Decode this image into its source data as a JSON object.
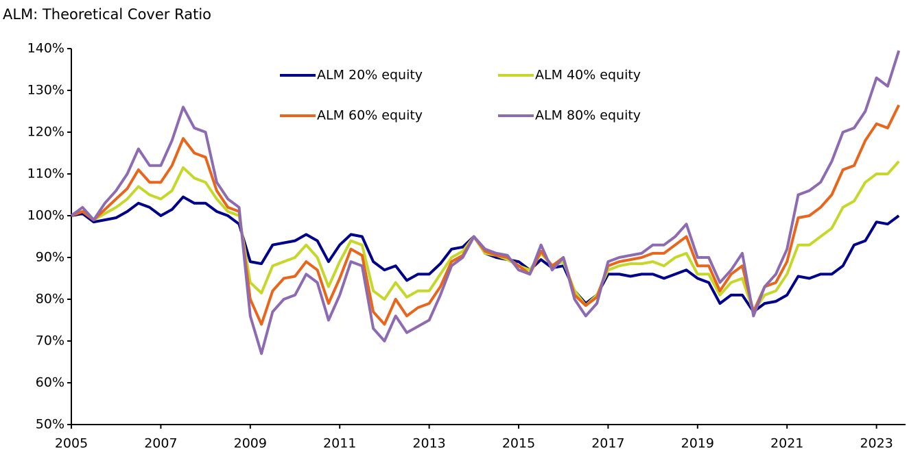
{
  "chart_data": {
    "type": "line",
    "title": "ALM: Theoretical Cover Ratio",
    "x": [
      2005,
      2005.25,
      2005.5,
      2005.75,
      2006,
      2006.25,
      2006.5,
      2006.75,
      2007,
      2007.25,
      2007.5,
      2007.75,
      2008,
      2008.25,
      2008.5,
      2008.75,
      2009,
      2009.25,
      2009.5,
      2009.75,
      2010,
      2010.25,
      2010.5,
      2010.75,
      2011,
      2011.25,
      2011.5,
      2011.75,
      2012,
      2012.25,
      2012.5,
      2012.75,
      2013,
      2013.25,
      2013.5,
      2013.75,
      2014,
      2014.25,
      2014.5,
      2014.75,
      2015,
      2015.25,
      2015.5,
      2015.75,
      2016,
      2016.25,
      2016.5,
      2016.75,
      2017,
      2017.25,
      2017.5,
      2017.75,
      2018,
      2018.25,
      2018.5,
      2018.75,
      2019,
      2019.25,
      2019.5,
      2019.75,
      2020,
      2020.25,
      2020.5,
      2020.75,
      2021,
      2021.25,
      2021.5,
      2021.75,
      2022,
      2022.25,
      2022.5,
      2022.75,
      2023,
      2023.25,
      2023.5
    ],
    "series": [
      {
        "name": "ALM 20% equity",
        "color": "#00008b",
        "values": [
          100,
          100.5,
          98.5,
          99,
          99.5,
          101,
          103,
          102,
          100,
          101.5,
          104.5,
          103,
          103,
          101,
          100,
          98,
          89,
          88.5,
          93,
          93.5,
          94,
          95.5,
          94,
          89,
          93,
          95.5,
          95,
          89,
          87,
          88,
          84.5,
          86,
          86,
          88.5,
          92,
          92.5,
          95,
          91,
          90,
          89.5,
          89,
          87,
          89.5,
          87.5,
          88,
          82,
          79,
          81,
          86,
          86,
          85.5,
          86,
          86,
          85,
          86,
          87,
          85,
          84,
          79,
          81,
          81,
          77,
          79,
          79.5,
          81,
          85.5,
          85,
          86,
          86,
          88,
          93,
          94,
          98.5,
          98,
          100
        ]
      },
      {
        "name": "ALM 40% equity",
        "color": "#c5d82a",
        "values": [
          100,
          101,
          99,
          100.5,
          102,
          104,
          107,
          105,
          104,
          106,
          111.5,
          109,
          108,
          104,
          101,
          100,
          84,
          81.5,
          88,
          89,
          90,
          93,
          90,
          83,
          89,
          94,
          93,
          82,
          80,
          84,
          80.5,
          82,
          82,
          86,
          90,
          91.5,
          95,
          91,
          90.5,
          89.5,
          88,
          87,
          91,
          88,
          89,
          82,
          78.5,
          81,
          87,
          88,
          88.5,
          88.5,
          89,
          88,
          90,
          91,
          86,
          86,
          81,
          84,
          85,
          77,
          81,
          82,
          86,
          93,
          93,
          95,
          97,
          102,
          103.5,
          108,
          110,
          110,
          113
        ]
      },
      {
        "name": "ALM 60% equity",
        "color": "#e8661c",
        "values": [
          100,
          101,
          99,
          101.5,
          104,
          106.5,
          111,
          108,
          108,
          112,
          118.5,
          115,
          114,
          106,
          102,
          101,
          80,
          74,
          82,
          85,
          85.5,
          89,
          87,
          79,
          85,
          92,
          90.5,
          77,
          74,
          80,
          76,
          78,
          79,
          83,
          89,
          90.5,
          95,
          91.5,
          90.5,
          90,
          88,
          86,
          91.5,
          88,
          90,
          81,
          78.5,
          80.5,
          88,
          89,
          89.5,
          90,
          91,
          91,
          93,
          95,
          88,
          88,
          82,
          86,
          88,
          77,
          83,
          84,
          89,
          99.5,
          100,
          102,
          105,
          111,
          112,
          118,
          122,
          121,
          126.5
        ]
      },
      {
        "name": "ALM 80% equity",
        "color": "#8c6bb1",
        "values": [
          100,
          102,
          99,
          103,
          106,
          110,
          116,
          112,
          112,
          118,
          126,
          121,
          120,
          108,
          104,
          102,
          76,
          67,
          77,
          80,
          81,
          86,
          84,
          75,
          81,
          89,
          88,
          73,
          70,
          76,
          72,
          73.5,
          75,
          81,
          88,
          90,
          95,
          92,
          91,
          90.5,
          87,
          86,
          93,
          87,
          90,
          80,
          76,
          79,
          89,
          90,
          90.5,
          91,
          93,
          93,
          95,
          98,
          90,
          90,
          84,
          87,
          91,
          76,
          83,
          86,
          92,
          105,
          106,
          108,
          113,
          120,
          121,
          125,
          133,
          131,
          139.5
        ]
      }
    ],
    "xlim": [
      2005,
      2023.65
    ],
    "xticks": [
      2005,
      2007,
      2009,
      2011,
      2013,
      2015,
      2017,
      2019,
      2021,
      2023
    ],
    "ylim": [
      50,
      140
    ],
    "yticks": [
      {
        "value": 50,
        "label": "50%"
      },
      {
        "value": 60,
        "label": "60%"
      },
      {
        "value": 70,
        "label": "70%"
      },
      {
        "value": 80,
        "label": "80%"
      },
      {
        "value": 90,
        "label": "90%"
      },
      {
        "value": 100,
        "label": "100%"
      },
      {
        "value": 110,
        "label": "110%"
      },
      {
        "value": 120,
        "label": "120%"
      },
      {
        "value": 130,
        "label": "130%"
      },
      {
        "value": 140,
        "label": "140%"
      }
    ],
    "grid": false
  }
}
